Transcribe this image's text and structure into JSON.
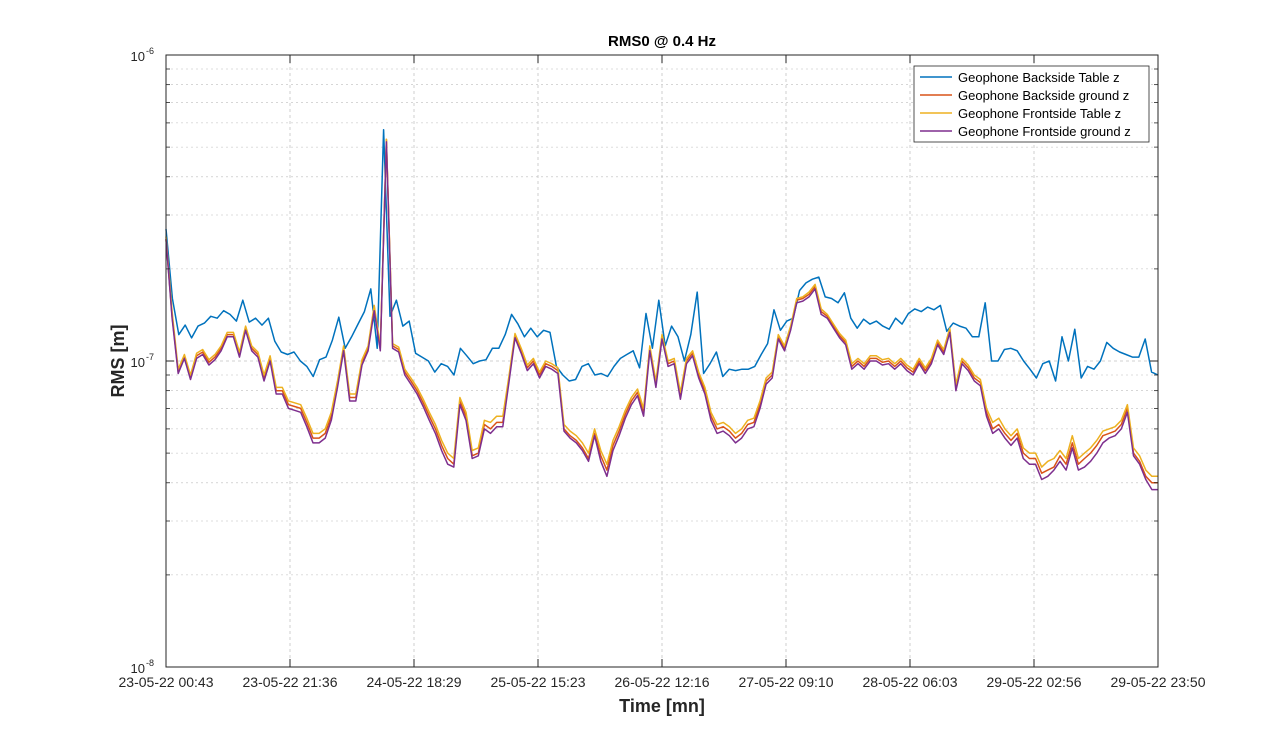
{
  "chart_data": {
    "type": "line",
    "title": "RMS0 @ 0.4 Hz",
    "xlabel": "Time [mn]",
    "ylabel": "RMS [m]",
    "yscale": "log",
    "ylim": [
      1e-08,
      1e-06
    ],
    "y_ticks": [
      {
        "value": 1e-08,
        "label": "10",
        "exp": "-8"
      },
      {
        "value": 1e-07,
        "label": "10",
        "exp": "-7"
      },
      {
        "value": 1e-06,
        "label": "10",
        "exp": "-6"
      }
    ],
    "x_tick_labels": [
      "23-05-22 00:43",
      "23-05-22 21:36",
      "24-05-22 18:29",
      "25-05-22 15:23",
      "26-05-22 12:16",
      "27-05-22 09:10",
      "28-05-22 06:03",
      "29-05-22 02:56",
      "29-05-22 23:50"
    ],
    "grid": true,
    "legend_position": "top-right",
    "series": [
      {
        "name": "Geophone Backside Table z",
        "color": "#0072BD",
        "values": [
          2.7e-07,
          1.6e-07,
          1.22e-07,
          1.31e-07,
          1.19e-07,
          1.3e-07,
          1.33e-07,
          1.4e-07,
          1.38e-07,
          1.46e-07,
          1.42e-07,
          1.35e-07,
          1.58e-07,
          1.34e-07,
          1.38e-07,
          1.31e-07,
          1.38e-07,
          1.16e-07,
          1.07e-07,
          1.05e-07,
          1.07e-07,
          1e-07,
          9.6e-08,
          8.9e-08,
          1.01e-07,
          1.03e-07,
          1.17e-07,
          1.39e-07,
          1.1e-07,
          1.2e-07,
          1.32e-07,
          1.45e-07,
          1.72e-07,
          1.1e-07,
          5.7e-07,
          1.4e-07,
          1.58e-07,
          1.3e-07,
          1.35e-07,
          1.06e-07,
          1.03e-07,
          1e-07,
          9.2e-08,
          9.8e-08,
          9.6e-08,
          9e-08,
          1.1e-07,
          1.04e-07,
          9.8e-08,
          1e-07,
          1.01e-07,
          1.1e-07,
          1.1e-07,
          1.22e-07,
          1.42e-07,
          1.32e-07,
          1.2e-07,
          1.28e-07,
          1.2e-07,
          1.26e-07,
          1.24e-07,
          9.6e-08,
          9e-08,
          8.6e-08,
          8.7e-08,
          9.6e-08,
          9.8e-08,
          9e-08,
          9.1e-08,
          8.9e-08,
          9.6e-08,
          1.02e-07,
          1.05e-07,
          1.08e-07,
          9.5e-08,
          1.43e-07,
          1.1e-07,
          1.58e-07,
          1.12e-07,
          1.3e-07,
          1.2e-07,
          1e-07,
          1.22e-07,
          1.68e-07,
          9.1e-08,
          9.8e-08,
          1.07e-07,
          8.9e-08,
          9.4e-08,
          9.3e-08,
          9.4e-08,
          9.4e-08,
          9.6e-08,
          1.05e-07,
          1.14e-07,
          1.47e-07,
          1.26e-07,
          1.35e-07,
          1.38e-07,
          1.7e-07,
          1.8e-07,
          1.85e-07,
          1.88e-07,
          1.62e-07,
          1.6e-07,
          1.55e-07,
          1.67e-07,
          1.38e-07,
          1.28e-07,
          1.37e-07,
          1.32e-07,
          1.35e-07,
          1.3e-07,
          1.27e-07,
          1.38e-07,
          1.32e-07,
          1.43e-07,
          1.48e-07,
          1.45e-07,
          1.5e-07,
          1.47e-07,
          1.52e-07,
          1.25e-07,
          1.33e-07,
          1.3e-07,
          1.28e-07,
          1.2e-07,
          1.2e-07,
          1.55e-07,
          1e-07,
          1e-07,
          1.09e-07,
          1.1e-07,
          1.08e-07,
          1e-07,
          9.4e-08,
          8.8e-08,
          9.8e-08,
          1e-07,
          8.6e-08,
          1.2e-07,
          1e-07,
          1.27e-07,
          8.8e-08,
          9.6e-08,
          9.4e-08,
          1e-07,
          1.15e-07,
          1.1e-07,
          1.07e-07,
          1.05e-07,
          1.03e-07,
          1.03e-07,
          1.18e-07,
          9.2e-08,
          9e-08
        ]
      },
      {
        "name": "Geophone Backside ground z",
        "color": "#D95319",
        "values": [
          2.5e-07,
          1.4e-07,
          9.2e-08,
          1.03e-07,
          8.8e-08,
          1.04e-07,
          1.07e-07,
          9.9e-08,
          1.03e-07,
          1.1e-07,
          1.22e-07,
          1.22e-07,
          1.05e-07,
          1.28e-07,
          1.1e-07,
          1.05e-07,
          8.8e-08,
          1.02e-07,
          8e-08,
          8e-08,
          7.2e-08,
          7.1e-08,
          7e-08,
          6.3e-08,
          5.6e-08,
          5.6e-08,
          5.8e-08,
          6.6e-08,
          8.4e-08,
          1.1e-07,
          7.6e-08,
          7.6e-08,
          9.9e-08,
          1.1e-07,
          1.5e-07,
          1.1e-07,
          5.3e-07,
          1.12e-07,
          1.09e-07,
          9.2e-08,
          8.6e-08,
          8e-08,
          7.3e-08,
          6.6e-08,
          6e-08,
          5.3e-08,
          4.8e-08,
          4.6e-08,
          7.4e-08,
          6.6e-08,
          4.9e-08,
          5e-08,
          6.2e-08,
          6e-08,
          6.3e-08,
          6.3e-08,
          8.7e-08,
          1.21e-07,
          1.08e-07,
          9.5e-08,
          1e-07,
          9e-08,
          9.8e-08,
          9.6e-08,
          9.3e-08,
          6e-08,
          5.7e-08,
          5.5e-08,
          5.2e-08,
          4.8e-08,
          5.8e-08,
          4.9e-08,
          4.4e-08,
          5.3e-08,
          5.9e-08,
          6.7e-08,
          7.4e-08,
          7.9e-08,
          6.8e-08,
          1.1e-07,
          8.4e-08,
          1.2e-07,
          9.8e-08,
          1e-07,
          7.7e-08,
          1e-07,
          1.06e-07,
          9e-08,
          8e-08,
          6.6e-08,
          6e-08,
          6.1e-08,
          5.9e-08,
          5.6e-08,
          5.8e-08,
          6.2e-08,
          6.3e-08,
          7.2e-08,
          8.6e-08,
          9e-08,
          1.2e-07,
          1.1e-07,
          1.28e-07,
          1.58e-07,
          1.6e-07,
          1.65e-07,
          1.75e-07,
          1.45e-07,
          1.4e-07,
          1.3e-07,
          1.21e-07,
          1.15e-07,
          9.6e-08,
          1e-07,
          9.6e-08,
          1.02e-07,
          1.02e-07,
          9.9e-08,
          1e-07,
          9.6e-08,
          1e-07,
          9.5e-08,
          9.2e-08,
          1e-07,
          9.3e-08,
          1e-07,
          1.15e-07,
          1.07e-07,
          1.26e-07,
          8.2e-08,
          1e-07,
          9.5e-08,
          8.8e-08,
          8.5e-08,
          6.8e-08,
          6e-08,
          6.2e-08,
          5.8e-08,
          5.5e-08,
          5.8e-08,
          5e-08,
          4.8e-08,
          4.8e-08,
          4.3e-08,
          4.4e-08,
          4.5e-08,
          4.9e-08,
          4.6e-08,
          5.4e-08,
          4.6e-08,
          4.8e-08,
          5e-08,
          5.3e-08,
          5.7e-08,
          5.8e-08,
          5.9e-08,
          6.2e-08,
          7e-08,
          5e-08,
          4.7e-08,
          4.2e-08,
          4e-08,
          4e-08
        ]
      },
      {
        "name": "Geophone Frontside Table z",
        "color": "#EDB120",
        "values": [
          2.55e-07,
          1.45e-07,
          9.4e-08,
          1.05e-07,
          9e-08,
          1.06e-07,
          1.09e-07,
          1.01e-07,
          1.05e-07,
          1.12e-07,
          1.24e-07,
          1.24e-07,
          1.07e-07,
          1.3e-07,
          1.12e-07,
          1.07e-07,
          9e-08,
          1.04e-07,
          8.2e-08,
          8.2e-08,
          7.4e-08,
          7.3e-08,
          7.2e-08,
          6.5e-08,
          5.8e-08,
          5.8e-08,
          6e-08,
          6.8e-08,
          8.6e-08,
          1.12e-07,
          7.8e-08,
          7.8e-08,
          1.01e-07,
          1.12e-07,
          1.52e-07,
          1.12e-07,
          5.3e-07,
          1.14e-07,
          1.11e-07,
          9.4e-08,
          8.8e-08,
          8.2e-08,
          7.5e-08,
          6.8e-08,
          6.2e-08,
          5.5e-08,
          5e-08,
          4.8e-08,
          7.6e-08,
          6.8e-08,
          5.1e-08,
          5.2e-08,
          6.4e-08,
          6.3e-08,
          6.6e-08,
          6.6e-08,
          8.9e-08,
          1.23e-07,
          1.1e-07,
          9.7e-08,
          1.02e-07,
          9.2e-08,
          1e-07,
          9.8e-08,
          9.5e-08,
          6.2e-08,
          5.9e-08,
          5.7e-08,
          5.4e-08,
          5e-08,
          6e-08,
          5.1e-08,
          4.6e-08,
          5.5e-08,
          6.1e-08,
          6.9e-08,
          7.6e-08,
          8.1e-08,
          7e-08,
          1.12e-07,
          8.6e-08,
          1.22e-07,
          1e-07,
          1.02e-07,
          7.9e-08,
          1.02e-07,
          1.08e-07,
          9.2e-08,
          8.2e-08,
          6.8e-08,
          6.2e-08,
          6.3e-08,
          6.1e-08,
          5.8e-08,
          6e-08,
          6.4e-08,
          6.5e-08,
          7.4e-08,
          8.8e-08,
          9.2e-08,
          1.22e-07,
          1.12e-07,
          1.3e-07,
          1.6e-07,
          1.62e-07,
          1.68e-07,
          1.78e-07,
          1.48e-07,
          1.42e-07,
          1.32e-07,
          1.23e-07,
          1.17e-07,
          9.8e-08,
          1.02e-07,
          9.8e-08,
          1.04e-07,
          1.04e-07,
          1.01e-07,
          1.02e-07,
          9.8e-08,
          1.02e-07,
          9.7e-08,
          9.4e-08,
          1.02e-07,
          9.5e-08,
          1.02e-07,
          1.17e-07,
          1.09e-07,
          1.28e-07,
          8.4e-08,
          1.02e-07,
          9.7e-08,
          9e-08,
          8.7e-08,
          7e-08,
          6.3e-08,
          6.5e-08,
          6e-08,
          5.7e-08,
          6e-08,
          5.2e-08,
          5e-08,
          5e-08,
          4.5e-08,
          4.7e-08,
          4.8e-08,
          5.1e-08,
          4.8e-08,
          5.7e-08,
          4.8e-08,
          5e-08,
          5.2e-08,
          5.5e-08,
          5.9e-08,
          6e-08,
          6.1e-08,
          6.4e-08,
          7.2e-08,
          5.2e-08,
          4.9e-08,
          4.4e-08,
          4.2e-08,
          4.2e-08
        ]
      },
      {
        "name": "Geophone Frontside ground z",
        "color": "#7E2F8E",
        "values": [
          2.5e-07,
          1.38e-07,
          9.1e-08,
          1.02e-07,
          8.7e-08,
          1.02e-07,
          1.05e-07,
          9.7e-08,
          1.01e-07,
          1.08e-07,
          1.2e-07,
          1.2e-07,
          1.03e-07,
          1.26e-07,
          1.08e-07,
          1.03e-07,
          8.6e-08,
          1e-07,
          7.8e-08,
          7.8e-08,
          7e-08,
          6.9e-08,
          6.8e-08,
          6.1e-08,
          5.4e-08,
          5.4e-08,
          5.6e-08,
          6.4e-08,
          8.2e-08,
          1.08e-07,
          7.4e-08,
          7.4e-08,
          9.7e-08,
          1.08e-07,
          1.46e-07,
          1.08e-07,
          5.2e-07,
          1.1e-07,
          1.07e-07,
          9e-08,
          8.4e-08,
          7.8e-08,
          7.1e-08,
          6.4e-08,
          5.8e-08,
          5.1e-08,
          4.6e-08,
          4.5e-08,
          7.2e-08,
          6.4e-08,
          4.8e-08,
          4.9e-08,
          6e-08,
          5.8e-08,
          6.1e-08,
          6.1e-08,
          8.5e-08,
          1.19e-07,
          1.06e-07,
          9.3e-08,
          9.8e-08,
          8.8e-08,
          9.6e-08,
          9.4e-08,
          9.1e-08,
          5.9e-08,
          5.6e-08,
          5.4e-08,
          5.1e-08,
          4.7e-08,
          5.7e-08,
          4.7e-08,
          4.2e-08,
          5.1e-08,
          5.7e-08,
          6.5e-08,
          7.2e-08,
          7.7e-08,
          6.6e-08,
          1.08e-07,
          8.2e-08,
          1.18e-07,
          9.6e-08,
          9.8e-08,
          7.5e-08,
          9.8e-08,
          1.04e-07,
          8.8e-08,
          7.8e-08,
          6.4e-08,
          5.8e-08,
          5.9e-08,
          5.7e-08,
          5.4e-08,
          5.6e-08,
          6e-08,
          6.1e-08,
          7e-08,
          8.4e-08,
          8.8e-08,
          1.18e-07,
          1.08e-07,
          1.26e-07,
          1.55e-07,
          1.57e-07,
          1.62e-07,
          1.72e-07,
          1.42e-07,
          1.38e-07,
          1.28e-07,
          1.19e-07,
          1.13e-07,
          9.4e-08,
          9.8e-08,
          9.4e-08,
          1e-07,
          1e-07,
          9.7e-08,
          9.8e-08,
          9.4e-08,
          9.8e-08,
          9.3e-08,
          9e-08,
          9.8e-08,
          9.1e-08,
          9.8e-08,
          1.13e-07,
          1.05e-07,
          1.24e-07,
          8e-08,
          9.8e-08,
          9.3e-08,
          8.6e-08,
          8.3e-08,
          6.6e-08,
          5.8e-08,
          6e-08,
          5.6e-08,
          5.3e-08,
          5.6e-08,
          4.8e-08,
          4.6e-08,
          4.6e-08,
          4.1e-08,
          4.2e-08,
          4.4e-08,
          4.7e-08,
          4.4e-08,
          5.2e-08,
          4.4e-08,
          4.5e-08,
          4.7e-08,
          5e-08,
          5.4e-08,
          5.6e-08,
          5.7e-08,
          6e-08,
          6.8e-08,
          4.9e-08,
          4.6e-08,
          4.1e-08,
          3.8e-08,
          3.8e-08
        ]
      }
    ]
  }
}
